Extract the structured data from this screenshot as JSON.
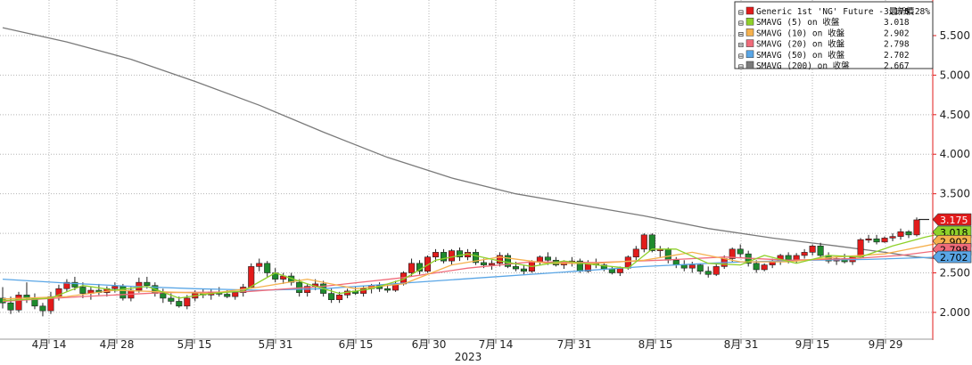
{
  "chart_data": {
    "type": "candlestick",
    "x_axis": {
      "tick_labels": [
        "4月 14",
        "4月 28",
        "5月 15",
        "5月 31",
        "6月 15",
        "6月 30",
        "7月 14",
        "7月 31",
        "8月 15",
        "8月 31",
        "9月 15",
        "9月 29"
      ],
      "year_label": "2023"
    },
    "y_axis": {
      "side": "right",
      "ylim": [
        1.65,
        5.95
      ],
      "ticks": [
        2.0,
        2.5,
        3.0,
        3.5,
        4.0,
        4.5,
        5.0,
        5.5
      ],
      "tick_labels": [
        "2.000",
        "2.500",
        "3.000",
        "3.500",
        "4.000",
        "4.500",
        "5.000",
        "5.500"
      ]
    },
    "grid": true,
    "legend_position": "top-right",
    "candles": [
      [
        2.18,
        2.32,
        2.05,
        2.12
      ],
      [
        2.12,
        2.2,
        1.98,
        2.03
      ],
      [
        2.03,
        2.26,
        2.0,
        2.22
      ],
      [
        2.22,
        2.38,
        2.12,
        2.18
      ],
      [
        2.18,
        2.24,
        2.04,
        2.08
      ],
      [
        2.08,
        2.12,
        1.95,
        2.02
      ],
      [
        2.02,
        2.26,
        1.98,
        2.2
      ],
      [
        2.2,
        2.35,
        2.15,
        2.3
      ],
      [
        2.3,
        2.42,
        2.26,
        2.38
      ],
      [
        2.38,
        2.45,
        2.28,
        2.32
      ],
      [
        2.32,
        2.38,
        2.18,
        2.24
      ],
      [
        2.24,
        2.33,
        2.16,
        2.28
      ],
      [
        2.28,
        2.36,
        2.22,
        2.25
      ],
      [
        2.25,
        2.33,
        2.2,
        2.3
      ],
      [
        2.3,
        2.38,
        2.25,
        2.33
      ],
      [
        2.33,
        2.36,
        2.15,
        2.18
      ],
      [
        2.18,
        2.32,
        2.14,
        2.28
      ],
      [
        2.28,
        2.44,
        2.25,
        2.38
      ],
      [
        2.38,
        2.45,
        2.3,
        2.34
      ],
      [
        2.34,
        2.38,
        2.2,
        2.24
      ],
      [
        2.24,
        2.3,
        2.12,
        2.18
      ],
      [
        2.18,
        2.24,
        2.1,
        2.14
      ],
      [
        2.14,
        2.2,
        2.06,
        2.08
      ],
      [
        2.08,
        2.22,
        2.04,
        2.18
      ],
      [
        2.18,
        2.28,
        2.14,
        2.24
      ],
      [
        2.24,
        2.3,
        2.18,
        2.22
      ],
      [
        2.22,
        2.3,
        2.16,
        2.26
      ],
      [
        2.26,
        2.32,
        2.2,
        2.23
      ],
      [
        2.23,
        2.28,
        2.18,
        2.2
      ],
      [
        2.2,
        2.27,
        2.16,
        2.25
      ],
      [
        2.25,
        2.36,
        2.2,
        2.32
      ],
      [
        2.32,
        2.62,
        2.3,
        2.58
      ],
      [
        2.58,
        2.68,
        2.52,
        2.62
      ],
      [
        2.62,
        2.65,
        2.45,
        2.5
      ],
      [
        2.5,
        2.56,
        2.38,
        2.42
      ],
      [
        2.42,
        2.5,
        2.36,
        2.46
      ],
      [
        2.46,
        2.5,
        2.34,
        2.38
      ],
      [
        2.38,
        2.42,
        2.2,
        2.25
      ],
      [
        2.25,
        2.36,
        2.2,
        2.33
      ],
      [
        2.33,
        2.42,
        2.28,
        2.36
      ],
      [
        2.36,
        2.4,
        2.2,
        2.24
      ],
      [
        2.24,
        2.3,
        2.12,
        2.16
      ],
      [
        2.16,
        2.26,
        2.12,
        2.22
      ],
      [
        2.22,
        2.3,
        2.18,
        2.27
      ],
      [
        2.27,
        2.32,
        2.22,
        2.24
      ],
      [
        2.24,
        2.34,
        2.2,
        2.3
      ],
      [
        2.3,
        2.36,
        2.24,
        2.34
      ],
      [
        2.34,
        2.38,
        2.26,
        2.3
      ],
      [
        2.3,
        2.36,
        2.25,
        2.28
      ],
      [
        2.28,
        2.4,
        2.26,
        2.36
      ],
      [
        2.36,
        2.52,
        2.34,
        2.5
      ],
      [
        2.5,
        2.68,
        2.46,
        2.62
      ],
      [
        2.62,
        2.66,
        2.48,
        2.52
      ],
      [
        2.52,
        2.72,
        2.5,
        2.7
      ],
      [
        2.7,
        2.8,
        2.64,
        2.76
      ],
      [
        2.76,
        2.8,
        2.62,
        2.65
      ],
      [
        2.65,
        2.8,
        2.6,
        2.78
      ],
      [
        2.78,
        2.82,
        2.65,
        2.7
      ],
      [
        2.7,
        2.8,
        2.66,
        2.76
      ],
      [
        2.76,
        2.8,
        2.6,
        2.63
      ],
      [
        2.63,
        2.68,
        2.56,
        2.6
      ],
      [
        2.6,
        2.66,
        2.54,
        2.62
      ],
      [
        2.62,
        2.76,
        2.58,
        2.72
      ],
      [
        2.72,
        2.75,
        2.56,
        2.58
      ],
      [
        2.58,
        2.64,
        2.52,
        2.55
      ],
      [
        2.55,
        2.6,
        2.48,
        2.52
      ],
      [
        2.52,
        2.66,
        2.5,
        2.64
      ],
      [
        2.64,
        2.72,
        2.6,
        2.7
      ],
      [
        2.7,
        2.76,
        2.6,
        2.66
      ],
      [
        2.66,
        2.7,
        2.58,
        2.6
      ],
      [
        2.6,
        2.66,
        2.55,
        2.63
      ],
      [
        2.63,
        2.7,
        2.58,
        2.65
      ],
      [
        2.65,
        2.68,
        2.5,
        2.52
      ],
      [
        2.52,
        2.66,
        2.5,
        2.62
      ],
      [
        2.62,
        2.68,
        2.56,
        2.6
      ],
      [
        2.6,
        2.64,
        2.52,
        2.55
      ],
      [
        2.55,
        2.58,
        2.48,
        2.5
      ],
      [
        2.5,
        2.58,
        2.46,
        2.56
      ],
      [
        2.56,
        2.72,
        2.54,
        2.7
      ],
      [
        2.7,
        2.84,
        2.66,
        2.8
      ],
      [
        2.8,
        3.0,
        2.76,
        2.98
      ],
      [
        2.98,
        3.0,
        2.76,
        2.78
      ],
      [
        2.78,
        2.84,
        2.7,
        2.8
      ],
      [
        2.8,
        2.82,
        2.62,
        2.66
      ],
      [
        2.66,
        2.7,
        2.56,
        2.6
      ],
      [
        2.6,
        2.66,
        2.52,
        2.56
      ],
      [
        2.56,
        2.64,
        2.5,
        2.6
      ],
      [
        2.6,
        2.62,
        2.48,
        2.52
      ],
      [
        2.52,
        2.58,
        2.44,
        2.48
      ],
      [
        2.48,
        2.62,
        2.46,
        2.58
      ],
      [
        2.58,
        2.72,
        2.55,
        2.68
      ],
      [
        2.68,
        2.82,
        2.64,
        2.8
      ],
      [
        2.8,
        2.86,
        2.7,
        2.74
      ],
      [
        2.74,
        2.78,
        2.58,
        2.62
      ],
      [
        2.62,
        2.66,
        2.5,
        2.54
      ],
      [
        2.54,
        2.62,
        2.52,
        2.6
      ],
      [
        2.6,
        2.68,
        2.56,
        2.65
      ],
      [
        2.65,
        2.74,
        2.6,
        2.72
      ],
      [
        2.72,
        2.76,
        2.62,
        2.66
      ],
      [
        2.66,
        2.75,
        2.62,
        2.72
      ],
      [
        2.72,
        2.8,
        2.68,
        2.76
      ],
      [
        2.76,
        2.86,
        2.72,
        2.84
      ],
      [
        2.84,
        2.88,
        2.7,
        2.72
      ],
      [
        2.72,
        2.76,
        2.62,
        2.65
      ],
      [
        2.65,
        2.7,
        2.6,
        2.68
      ],
      [
        2.68,
        2.74,
        2.62,
        2.64
      ],
      [
        2.64,
        2.72,
        2.6,
        2.7
      ],
      [
        2.7,
        2.94,
        2.68,
        2.92
      ],
      [
        2.92,
        2.98,
        2.88,
        2.93
      ],
      [
        2.93,
        2.98,
        2.86,
        2.89
      ],
      [
        2.89,
        2.96,
        2.88,
        2.94
      ],
      [
        2.94,
        3.0,
        2.9,
        2.96
      ],
      [
        2.96,
        3.06,
        2.92,
        3.02
      ],
      [
        3.02,
        3.04,
        2.94,
        2.98
      ],
      [
        2.98,
        3.2,
        2.96,
        3.17
      ]
    ],
    "sma_series": [
      {
        "name": "SMAVG (5)  on 收盤",
        "color": "#8fd12a",
        "value": "3.018",
        "points": [
          [
            0,
            2.15
          ],
          [
            6,
            2.18
          ],
          [
            10,
            2.34
          ],
          [
            14,
            2.28
          ],
          [
            18,
            2.33
          ],
          [
            22,
            2.18
          ],
          [
            26,
            2.24
          ],
          [
            30,
            2.27
          ],
          [
            34,
            2.5
          ],
          [
            38,
            2.36
          ],
          [
            42,
            2.24
          ],
          [
            46,
            2.3
          ],
          [
            50,
            2.42
          ],
          [
            54,
            2.66
          ],
          [
            58,
            2.74
          ],
          [
            62,
            2.65
          ],
          [
            66,
            2.58
          ],
          [
            70,
            2.65
          ],
          [
            74,
            2.6
          ],
          [
            78,
            2.56
          ],
          [
            81,
            2.8
          ],
          [
            84,
            2.8
          ],
          [
            88,
            2.62
          ],
          [
            92,
            2.6
          ],
          [
            95,
            2.72
          ],
          [
            99,
            2.62
          ],
          [
            103,
            2.72
          ],
          [
            107,
            2.7
          ],
          [
            111,
            2.84
          ],
          [
            115,
            2.95
          ],
          [
            118,
            3.018
          ]
        ]
      },
      {
        "name": "SMAVG (10)  on 收盤",
        "color": "#f5b14e",
        "value": "2.902",
        "points": [
          [
            0,
            2.17
          ],
          [
            8,
            2.2
          ],
          [
            14,
            2.28
          ],
          [
            20,
            2.26
          ],
          [
            26,
            2.24
          ],
          [
            32,
            2.32
          ],
          [
            38,
            2.42
          ],
          [
            44,
            2.3
          ],
          [
            50,
            2.36
          ],
          [
            56,
            2.6
          ],
          [
            62,
            2.7
          ],
          [
            68,
            2.62
          ],
          [
            74,
            2.62
          ],
          [
            80,
            2.66
          ],
          [
            86,
            2.76
          ],
          [
            92,
            2.64
          ],
          [
            98,
            2.64
          ],
          [
            104,
            2.7
          ],
          [
            110,
            2.74
          ],
          [
            115,
            2.84
          ],
          [
            118,
            2.902
          ]
        ]
      },
      {
        "name": "SMAVG (20)  on 收盤",
        "color": "#f06b7a",
        "value": "2.798",
        "points": [
          [
            0,
            2.14
          ],
          [
            10,
            2.2
          ],
          [
            20,
            2.25
          ],
          [
            30,
            2.26
          ],
          [
            40,
            2.33
          ],
          [
            50,
            2.44
          ],
          [
            58,
            2.56
          ],
          [
            66,
            2.64
          ],
          [
            74,
            2.63
          ],
          [
            82,
            2.66
          ],
          [
            90,
            2.7
          ],
          [
            98,
            2.66
          ],
          [
            106,
            2.68
          ],
          [
            112,
            2.72
          ],
          [
            118,
            2.798
          ]
        ]
      },
      {
        "name": "SMAVG (50)  on 收盤",
        "color": "#5aa6e6",
        "value": "2.702",
        "points": [
          [
            0,
            2.42
          ],
          [
            8,
            2.37
          ],
          [
            16,
            2.33
          ],
          [
            24,
            2.3
          ],
          [
            32,
            2.28
          ],
          [
            40,
            2.3
          ],
          [
            50,
            2.37
          ],
          [
            60,
            2.44
          ],
          [
            70,
            2.51
          ],
          [
            80,
            2.58
          ],
          [
            90,
            2.63
          ],
          [
            100,
            2.66
          ],
          [
            108,
            2.67
          ],
          [
            114,
            2.69
          ],
          [
            118,
            2.702
          ]
        ]
      },
      {
        "name": "SMAVG (200)  on 收盤",
        "color": "#7a7a7a",
        "value": "2.667",
        "points": [
          [
            0,
            5.6
          ],
          [
            8,
            5.42
          ],
          [
            16,
            5.2
          ],
          [
            24,
            4.92
          ],
          [
            32,
            4.62
          ],
          [
            40,
            4.28
          ],
          [
            48,
            3.96
          ],
          [
            56,
            3.7
          ],
          [
            64,
            3.5
          ],
          [
            72,
            3.36
          ],
          [
            80,
            3.22
          ],
          [
            88,
            3.06
          ],
          [
            96,
            2.94
          ],
          [
            104,
            2.84
          ],
          [
            110,
            2.76
          ],
          [
            114,
            2.7
          ],
          [
            118,
            2.667
          ]
        ]
      }
    ],
    "legend": {
      "main_name": "Generic 1st 'NG' Future - 最新價",
      "main_value": "3.175",
      "main_change": "0.28%",
      "main_color": "#e21b1b"
    },
    "last_badges": [
      {
        "value": "3.175",
        "y": 3.175,
        "bg": "#e21b1b",
        "fg": "#ffffff"
      },
      {
        "value": "3.018",
        "y": 3.018,
        "bg": "#8fd12a",
        "fg": "#000000"
      },
      {
        "value": "2.902",
        "y": 2.902,
        "bg": "#f5b14e",
        "fg": "#000000"
      },
      {
        "value": "2.798",
        "y": 2.798,
        "bg": "#f06b7a",
        "fg": "#000000"
      },
      {
        "value": "2.702",
        "y": 2.702,
        "bg": "#5aa6e6",
        "fg": "#000000"
      }
    ]
  }
}
